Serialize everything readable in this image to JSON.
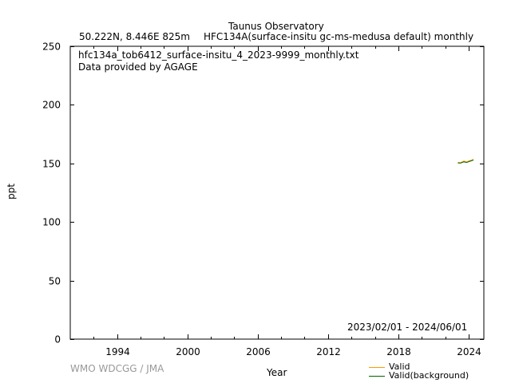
{
  "header": {
    "station": "Taunus Observatory",
    "location": "50.222N, 8.446E 825m",
    "species": "HFC134A(surface-insitu gc-ms-medusa default) monthly"
  },
  "plot_text": {
    "filename": "hfc134a_tob6412_surface-insitu_4_2023-9999_monthly.txt",
    "provider": "Data provided by AGAGE",
    "date_range": "2023/02/01 - 2024/06/01"
  },
  "credit": "WMO WDCGG / JMA",
  "colors": {
    "valid": "#ff9900",
    "valid_background": "#006400",
    "axis": "#000000"
  },
  "chart_data": {
    "type": "line",
    "xlabel": "Year",
    "ylabel": "ppt",
    "xlim": [
      1990.0,
      2025.3
    ],
    "ylim": [
      0,
      250
    ],
    "x_ticks": [
      1994,
      2000,
      2006,
      2012,
      2018,
      2024
    ],
    "y_ticks": [
      0,
      50,
      100,
      150,
      200,
      250
    ],
    "grid": false,
    "legend": "bottom-right",
    "series": [
      {
        "name": "Valid",
        "color": "#ff9900",
        "x": [
          2023.08,
          2023.17,
          2023.25,
          2023.33,
          2023.42,
          2023.5,
          2023.58,
          2023.67,
          2023.75,
          2023.83,
          2023.92,
          2024.0,
          2024.08,
          2024.17,
          2024.25,
          2024.33,
          2024.42
        ],
        "y": [
          150.9,
          150.8,
          150.6,
          150.7,
          151.2,
          151.6,
          152.0,
          151.8,
          151.5,
          151.4,
          151.6,
          152.0,
          152.3,
          152.5,
          152.8,
          153.1,
          153.4
        ]
      },
      {
        "name": "Valid(background)",
        "color": "#006400",
        "x": [
          2023.08,
          2023.17,
          2023.25,
          2023.33,
          2023.42,
          2023.5,
          2023.58,
          2023.67,
          2023.75,
          2023.83,
          2023.92,
          2024.0,
          2024.08,
          2024.17,
          2024.25,
          2024.33,
          2024.42
        ],
        "y": [
          150.4,
          150.4,
          150.3,
          150.4,
          150.7,
          151.0,
          151.3,
          151.2,
          151.0,
          150.9,
          151.1,
          151.5,
          151.8,
          152.0,
          152.3,
          152.6,
          152.9
        ]
      }
    ]
  }
}
